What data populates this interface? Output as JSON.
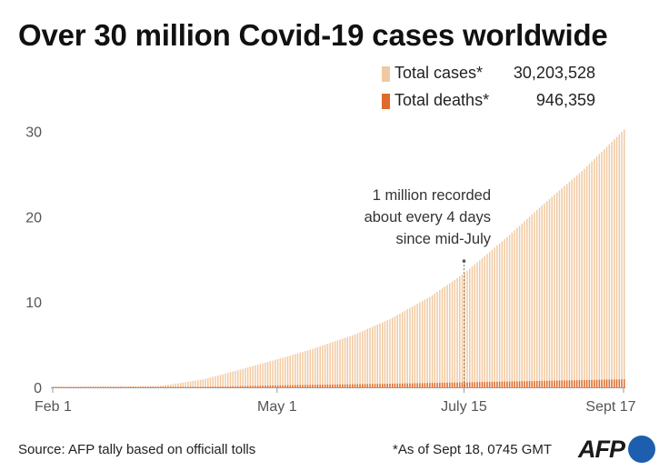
{
  "title": "Over 30 million Covid-19 cases worldwide",
  "source": "Source: AFP tally based on officiall tolls",
  "note": "*As of Sept 18, 0745 GMT",
  "logo_text": "AFP",
  "colors": {
    "cases": "#f1c9a1",
    "deaths": "#e06a2a",
    "axis": "#999999",
    "logo_dot": "#1d5fae"
  },
  "chart_data": {
    "type": "bar",
    "title": "Over 30 million Covid-19 cases worldwide",
    "ylabel": "",
    "xlabel": "",
    "unit": "million",
    "x_start": "2020-02-01",
    "x_end": "2020-09-17",
    "y_range": [
      0,
      31
    ],
    "x_ticks": [
      {
        "date": "2020-02-01",
        "label": "Feb 1"
      },
      {
        "date": "2020-05-01",
        "label": "May 1"
      },
      {
        "date": "2020-07-15",
        "label": "July 15"
      },
      {
        "date": "2020-09-17",
        "label": "Sept 17"
      }
    ],
    "y_ticks": [
      0,
      10,
      20,
      30
    ],
    "legend": [
      {
        "name": "Total cases*",
        "value": "30,203,528",
        "color": "#f1c9a1"
      },
      {
        "name": "Total deaths*",
        "value": "946,359",
        "color": "#e06a2a"
      }
    ],
    "legend_position": "top-right",
    "annotation": {
      "lines": [
        "1 million recorded",
        "about every 4 days",
        "since mid-July"
      ],
      "date": "2020-07-15",
      "value": 14.8
    },
    "series": [
      {
        "name": "Total cases*",
        "points": [
          [
            "2020-02-01",
            0.012
          ],
          [
            "2020-02-15",
            0.069
          ],
          [
            "2020-03-01",
            0.088
          ],
          [
            "2020-03-15",
            0.17
          ],
          [
            "2020-04-01",
            0.93
          ],
          [
            "2020-04-15",
            2.0
          ],
          [
            "2020-05-01",
            3.3
          ],
          [
            "2020-05-15",
            4.5
          ],
          [
            "2020-06-01",
            6.2
          ],
          [
            "2020-06-15",
            8.0
          ],
          [
            "2020-07-01",
            10.6
          ],
          [
            "2020-07-15",
            13.4
          ],
          [
            "2020-08-01",
            17.6
          ],
          [
            "2020-08-15",
            21.3
          ],
          [
            "2020-09-01",
            25.6
          ],
          [
            "2020-09-17",
            30.2
          ]
        ]
      },
      {
        "name": "Total deaths*",
        "points": [
          [
            "2020-02-01",
            0.0003
          ],
          [
            "2020-03-01",
            0.003
          ],
          [
            "2020-04-01",
            0.047
          ],
          [
            "2020-04-15",
            0.13
          ],
          [
            "2020-05-01",
            0.23
          ],
          [
            "2020-05-15",
            0.3
          ],
          [
            "2020-06-01",
            0.37
          ],
          [
            "2020-06-15",
            0.43
          ],
          [
            "2020-07-01",
            0.51
          ],
          [
            "2020-07-15",
            0.58
          ],
          [
            "2020-08-01",
            0.68
          ],
          [
            "2020-08-15",
            0.76
          ],
          [
            "2020-09-01",
            0.85
          ],
          [
            "2020-09-17",
            0.946
          ]
        ]
      }
    ]
  }
}
